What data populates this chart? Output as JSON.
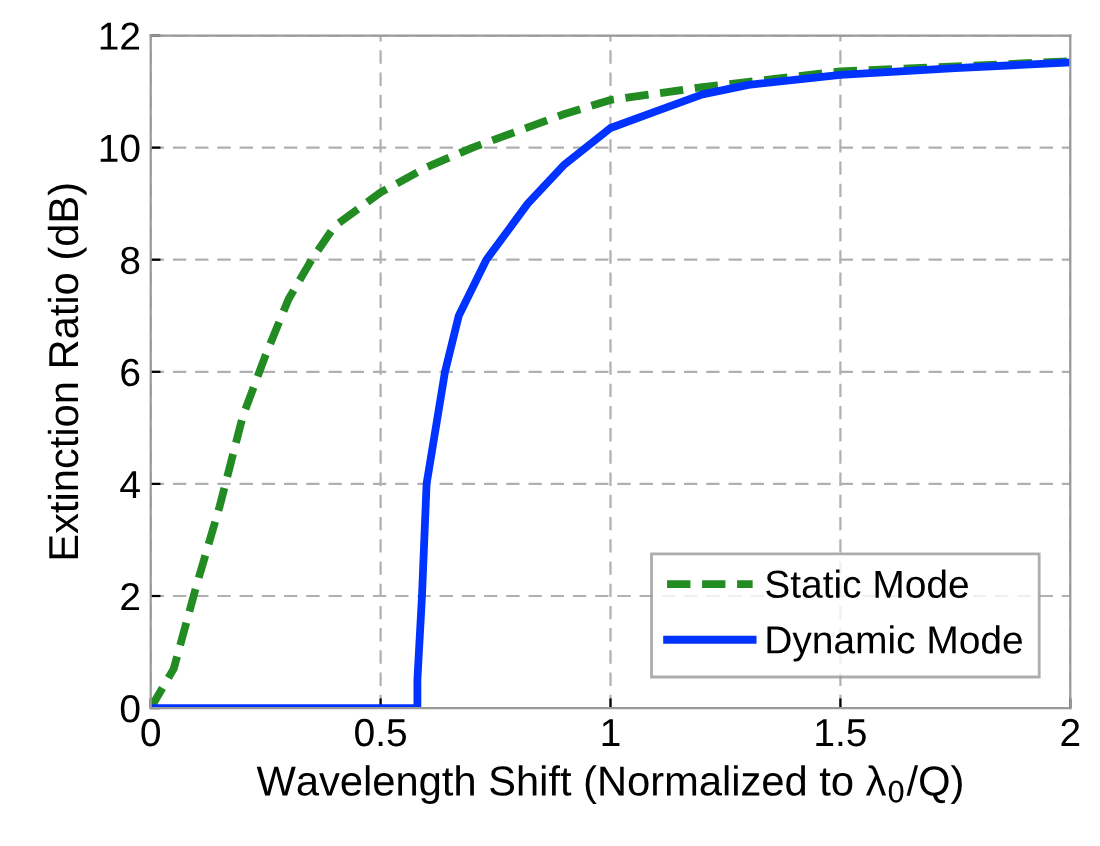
{
  "chart_data": {
    "type": "line",
    "xlabel": "Wavelength Shift (Normalized to λ$_{0}$/Q)",
    "ylabel": "Extinction Ratio (dB)",
    "xlim": [
      0,
      2
    ],
    "ylim": [
      0,
      12
    ],
    "xticks": [
      0,
      0.5,
      1,
      1.5,
      2
    ],
    "yticks": [
      0,
      2,
      4,
      6,
      8,
      10,
      12
    ],
    "grid": true,
    "legend": "bottom right",
    "series": [
      {
        "name": "Static Mode",
        "color": "#228b22",
        "line_style": "dashed",
        "x": [
          0,
          0.05,
          0.1,
          0.15,
          0.2,
          0.25,
          0.3,
          0.35,
          0.4,
          0.5,
          0.6,
          0.7,
          0.8,
          0.9,
          1.0,
          1.2,
          1.5,
          2.0
        ],
        "values": [
          0,
          0.7,
          2.2,
          3.6,
          5.2,
          6.3,
          7.3,
          8.0,
          8.6,
          9.2,
          9.65,
          10.0,
          10.3,
          10.6,
          10.85,
          11.08,
          11.36,
          11.54
        ]
      },
      {
        "name": "Dynamic Mode",
        "color": "#0033ff",
        "line_style": "solid",
        "x": [
          0,
          0.58,
          0.58,
          0.59,
          0.6,
          0.64,
          0.67,
          0.73,
          0.82,
          0.9,
          1.0,
          1.1,
          1.2,
          1.3,
          1.5,
          1.75,
          2.0
        ],
        "values": [
          0,
          0,
          0.5,
          2,
          4,
          6,
          7,
          8,
          9,
          9.7,
          10.35,
          10.65,
          10.95,
          11.12,
          11.3,
          11.42,
          11.52
        ]
      }
    ]
  }
}
